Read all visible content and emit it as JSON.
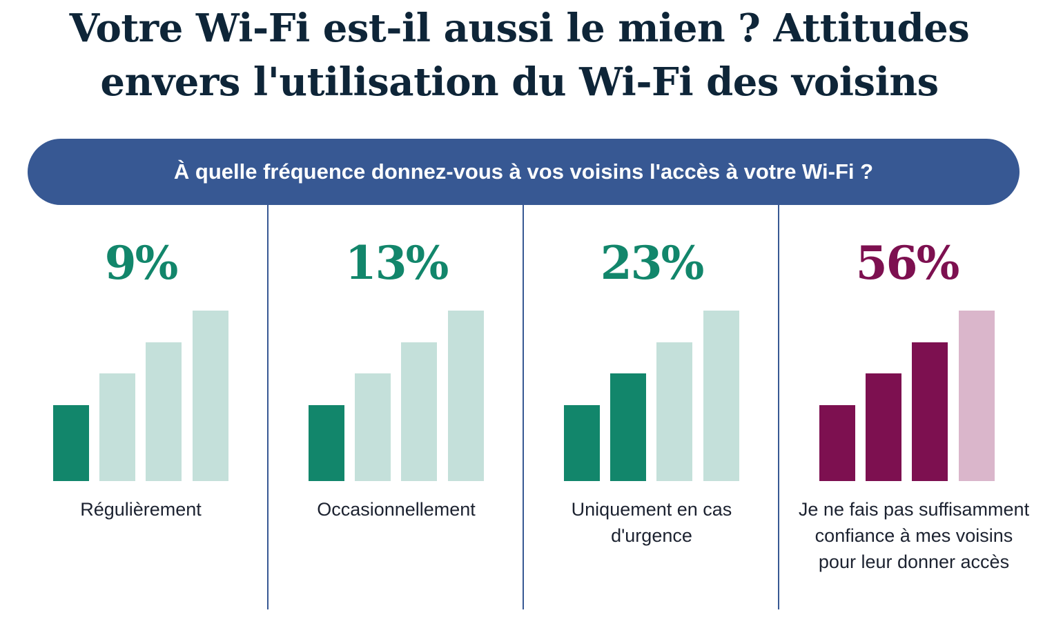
{
  "title_lines": [
    "Votre Wi-Fi est-il aussi le mien ? Attitudes",
    "envers l'utilisation du Wi-Fi des voisins"
  ],
  "question": "À quelle fréquence donnez-vous à vos voisins l'accès à votre Wi-Fi ?",
  "colors": {
    "green": "#12866b",
    "green_light": "#c4e0da",
    "purple": "#7d1050",
    "purple_light": "#dab6cb",
    "navy": "#375893"
  },
  "chart_data": {
    "type": "bar",
    "categories": [
      "Régulièrement",
      "Occasionnellement",
      "Uniquement en cas d'urgence",
      "Je ne fais pas suffisamment confiance à mes voisins pour leur donner accès"
    ],
    "values": [
      9,
      13,
      23,
      56
    ],
    "value_labels": [
      "9%",
      "13%",
      "23%",
      "56%"
    ],
    "filled_bars": [
      1,
      1,
      2,
      3
    ],
    "panel_colors": [
      "green",
      "green",
      "green",
      "purple"
    ]
  }
}
